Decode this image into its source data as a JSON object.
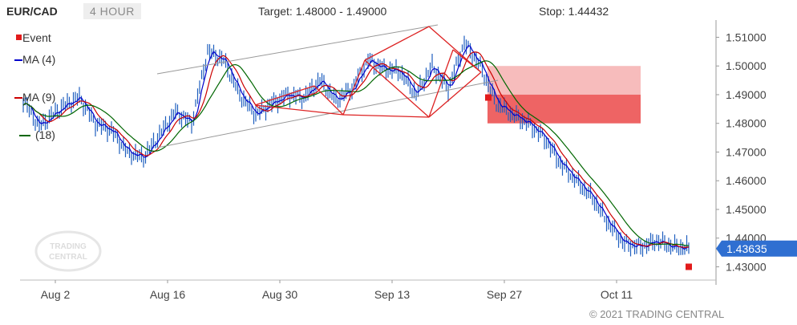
{
  "header": {
    "symbol": "EUR/CAD",
    "timeframe": "4 HOUR",
    "target": "Target: 1.48000 - 1.49000",
    "stop": "Stop: 1.44432"
  },
  "legend": [
    {
      "label": "Event",
      "color": "#e21b1b"
    },
    {
      "label": "MA (4)",
      "color": "#0000cc"
    },
    {
      "label": "MA (9)",
      "color": "#cc0000"
    },
    {
      "label": "(18)",
      "color": "#006600"
    }
  ],
  "watermark": "TRADING CENTRAL",
  "copyright": "© 2021 TRADING CENTRAL",
  "chart_data": {
    "type": "line",
    "title": "EUR/CAD 4 HOUR",
    "x_ticks": [
      "Aug 2",
      "Aug 16",
      "Aug 30",
      "Sep 13",
      "Sep 27",
      "Oct 11"
    ],
    "y_ticks": [
      "1.51000",
      "1.50000",
      "1.49000",
      "1.48000",
      "1.47000",
      "1.46000",
      "1.45000",
      "1.44000",
      "1.43000"
    ],
    "ylim": [
      1.4265,
      1.516
    ],
    "current_price": "1.43635",
    "target_zone": [
      1.48,
      1.49
    ],
    "extended_zone": [
      1.49,
      1.5
    ],
    "stop": 1.44432,
    "series": [
      {
        "name": "EUR/CAD",
        "color": "#1f5fbf",
        "x": [
          "Jul 29",
          "Jul 31",
          "Aug 3",
          "Aug 5",
          "Aug 7",
          "Aug 9",
          "Aug 11",
          "Aug 13",
          "Aug 15",
          "Aug 17",
          "Aug 19",
          "Aug 21",
          "Aug 23",
          "Aug 25",
          "Aug 27",
          "Aug 29",
          "Aug 31",
          "Sep 2",
          "Sep 4",
          "Sep 6",
          "Sep 8",
          "Sep 10",
          "Sep 12",
          "Sep 14",
          "Sep 16",
          "Sep 18",
          "Sep 20",
          "Sep 22",
          "Sep 24",
          "Sep 26",
          "Sep 28",
          "Sep 30",
          "Oct 2",
          "Oct 4",
          "Oct 6",
          "Oct 8",
          "Oct 10",
          "Oct 12",
          "Oct 14",
          "Oct 16",
          "Oct 18",
          "Oct 20"
        ],
        "values": [
          1.488,
          1.479,
          1.486,
          1.489,
          1.48,
          1.4775,
          1.47,
          1.468,
          1.476,
          1.484,
          1.48,
          1.505,
          1.502,
          1.49,
          1.483,
          1.487,
          1.49,
          1.489,
          1.495,
          1.488,
          1.492,
          1.502,
          1.499,
          1.498,
          1.49,
          1.5,
          1.492,
          1.508,
          1.5,
          1.487,
          1.483,
          1.48,
          1.475,
          1.466,
          1.46,
          1.454,
          1.445,
          1.438,
          1.437,
          1.439,
          1.437,
          1.4365
        ]
      },
      {
        "name": "MA (4)",
        "color": "#0000cc"
      },
      {
        "name": "MA (9)",
        "color": "#cc0000"
      },
      {
        "name": "(18)",
        "color": "#006600"
      }
    ],
    "events": [
      {
        "x": "Sep 25",
        "y": 1.489
      },
      {
        "x": "Oct 20",
        "y": 1.43
      }
    ]
  }
}
